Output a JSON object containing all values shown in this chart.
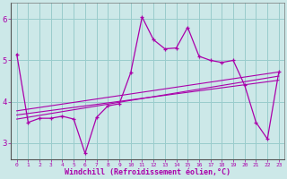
{
  "bg_color": "#cce8e8",
  "line_color": "#aa00aa",
  "grid_color": "#99cccc",
  "xlabel": "Windchill (Refroidissement éolien,°C)",
  "xlim": [
    -0.5,
    23.5
  ],
  "ylim": [
    2.6,
    6.4
  ],
  "yticks": [
    3,
    4,
    5,
    6
  ],
  "xticks": [
    0,
    1,
    2,
    3,
    4,
    5,
    6,
    7,
    8,
    9,
    10,
    11,
    12,
    13,
    14,
    15,
    16,
    17,
    18,
    19,
    20,
    21,
    22,
    23
  ],
  "line1_y": [
    5.15,
    3.5,
    3.6,
    3.6,
    3.65,
    3.58,
    2.75,
    3.62,
    3.9,
    3.95,
    4.7,
    6.05,
    5.5,
    5.28,
    5.3,
    5.8,
    5.1,
    5.0,
    4.95,
    5.0,
    4.4,
    3.5,
    3.1,
    4.72
  ],
  "trend1_x": [
    0,
    23
  ],
  "trend1_y": [
    3.58,
    4.62
  ],
  "trend2_x": [
    0,
    23
  ],
  "trend2_y": [
    3.68,
    4.52
  ],
  "trend3_x": [
    0,
    23
  ],
  "trend3_y": [
    3.78,
    4.72
  ]
}
